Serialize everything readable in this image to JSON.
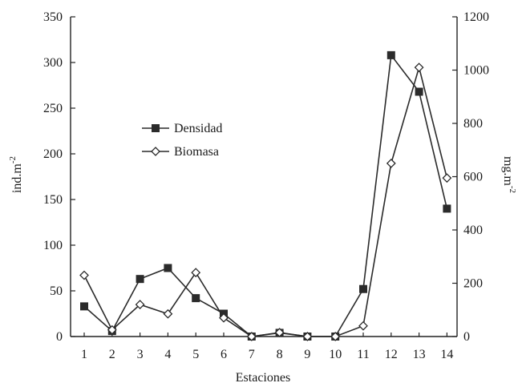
{
  "chart_data": {
    "type": "line",
    "x": [
      1,
      2,
      3,
      4,
      5,
      6,
      7,
      8,
      9,
      10,
      11,
      12,
      13,
      14
    ],
    "xlabel": "Estaciones",
    "ylabel": "ind.m",
    "ylabel_exp": "-2",
    "y2label": "mg.m",
    "y2label_exp": "-2",
    "ylim": [
      0,
      350
    ],
    "y2lim": [
      0,
      1200
    ],
    "yticks": [
      0,
      50,
      100,
      150,
      200,
      250,
      300,
      350
    ],
    "y2ticks": [
      0,
      200,
      400,
      600,
      800,
      1000,
      1200
    ],
    "legend_position": "upper-left",
    "grid": false,
    "series": [
      {
        "name": "Densidad",
        "axis": "left",
        "marker": "square-filled",
        "values": [
          33,
          6,
          63,
          75,
          42,
          25,
          0,
          4,
          0,
          0,
          52,
          308,
          268,
          140
        ]
      },
      {
        "name": "Biomasa",
        "axis": "right",
        "marker": "diamond-open",
        "values": [
          230,
          25,
          120,
          85,
          240,
          70,
          0,
          15,
          0,
          0,
          40,
          650,
          1010,
          595
        ]
      }
    ]
  }
}
